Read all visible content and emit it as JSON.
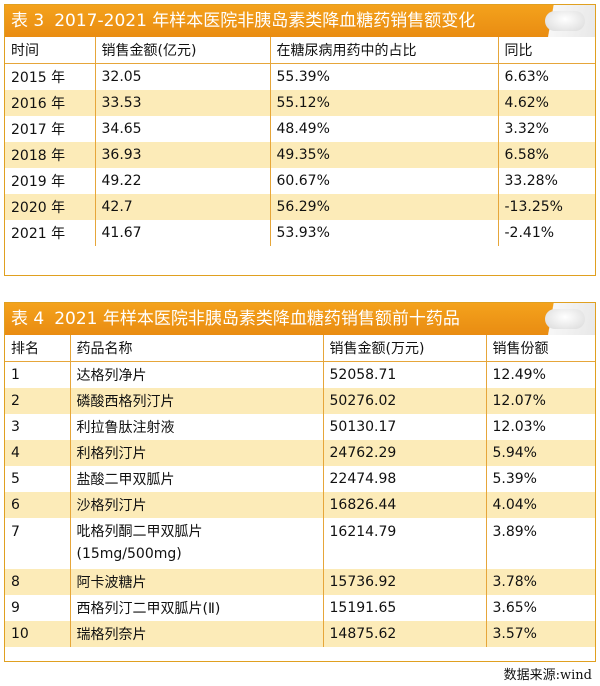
{
  "table3": {
    "number": "表 3",
    "title": "2017-2021 年样本医院非胰岛素类降血糖药销售额变化",
    "headers": [
      "时间",
      "销售金额(亿元)",
      "在糖尿病用药中的占比",
      "同比"
    ],
    "rows": [
      [
        "2015 年",
        "32.05",
        "55.39%",
        "6.63%"
      ],
      [
        "2016 年",
        "33.53",
        "55.12%",
        "4.62%"
      ],
      [
        "2017 年",
        "34.65",
        "48.49%",
        "3.32%"
      ],
      [
        "2018 年",
        "36.93",
        "49.35%",
        "6.58%"
      ],
      [
        "2019 年",
        "49.22",
        "60.67%",
        "33.28%"
      ],
      [
        "2020 年",
        "42.7",
        "56.29%",
        "-13.25%"
      ],
      [
        "2021 年",
        "41.67",
        "53.93%",
        "-2.41%"
      ]
    ]
  },
  "table4": {
    "number": "表 4",
    "title": "2021 年样本医院非胰岛素类降血糖药销售额前十药品",
    "headers": [
      "排名",
      "药品名称",
      "销售金额(万元)",
      "销售份额"
    ],
    "rows": [
      [
        "1",
        "达格列净片",
        "52058.71",
        "12.49%"
      ],
      [
        "2",
        "磷酸西格列汀片",
        "50276.02",
        "12.07%"
      ],
      [
        "3",
        "利拉鲁肽注射液",
        "50130.17",
        "12.03%"
      ],
      [
        "4",
        "利格列汀片",
        "24762.29",
        "5.94%"
      ],
      [
        "5",
        "盐酸二甲双胍片",
        "22474.98",
        "5.39%"
      ],
      [
        "6",
        "沙格列汀片",
        "16826.44",
        "4.04%"
      ],
      [
        "7",
        "吡格列酮二甲双胍片(15mg/500mg)",
        "16214.79",
        "3.89%"
      ],
      [
        "8",
        "阿卡波糖片",
        "15736.92",
        "3.78%"
      ],
      [
        "9",
        "西格列汀二甲双胍片(Ⅱ)",
        "15191.65",
        "3.65%"
      ],
      [
        "10",
        "瑞格列奈片",
        "14875.62",
        "3.57%"
      ]
    ]
  },
  "source": "数据来源:wind"
}
